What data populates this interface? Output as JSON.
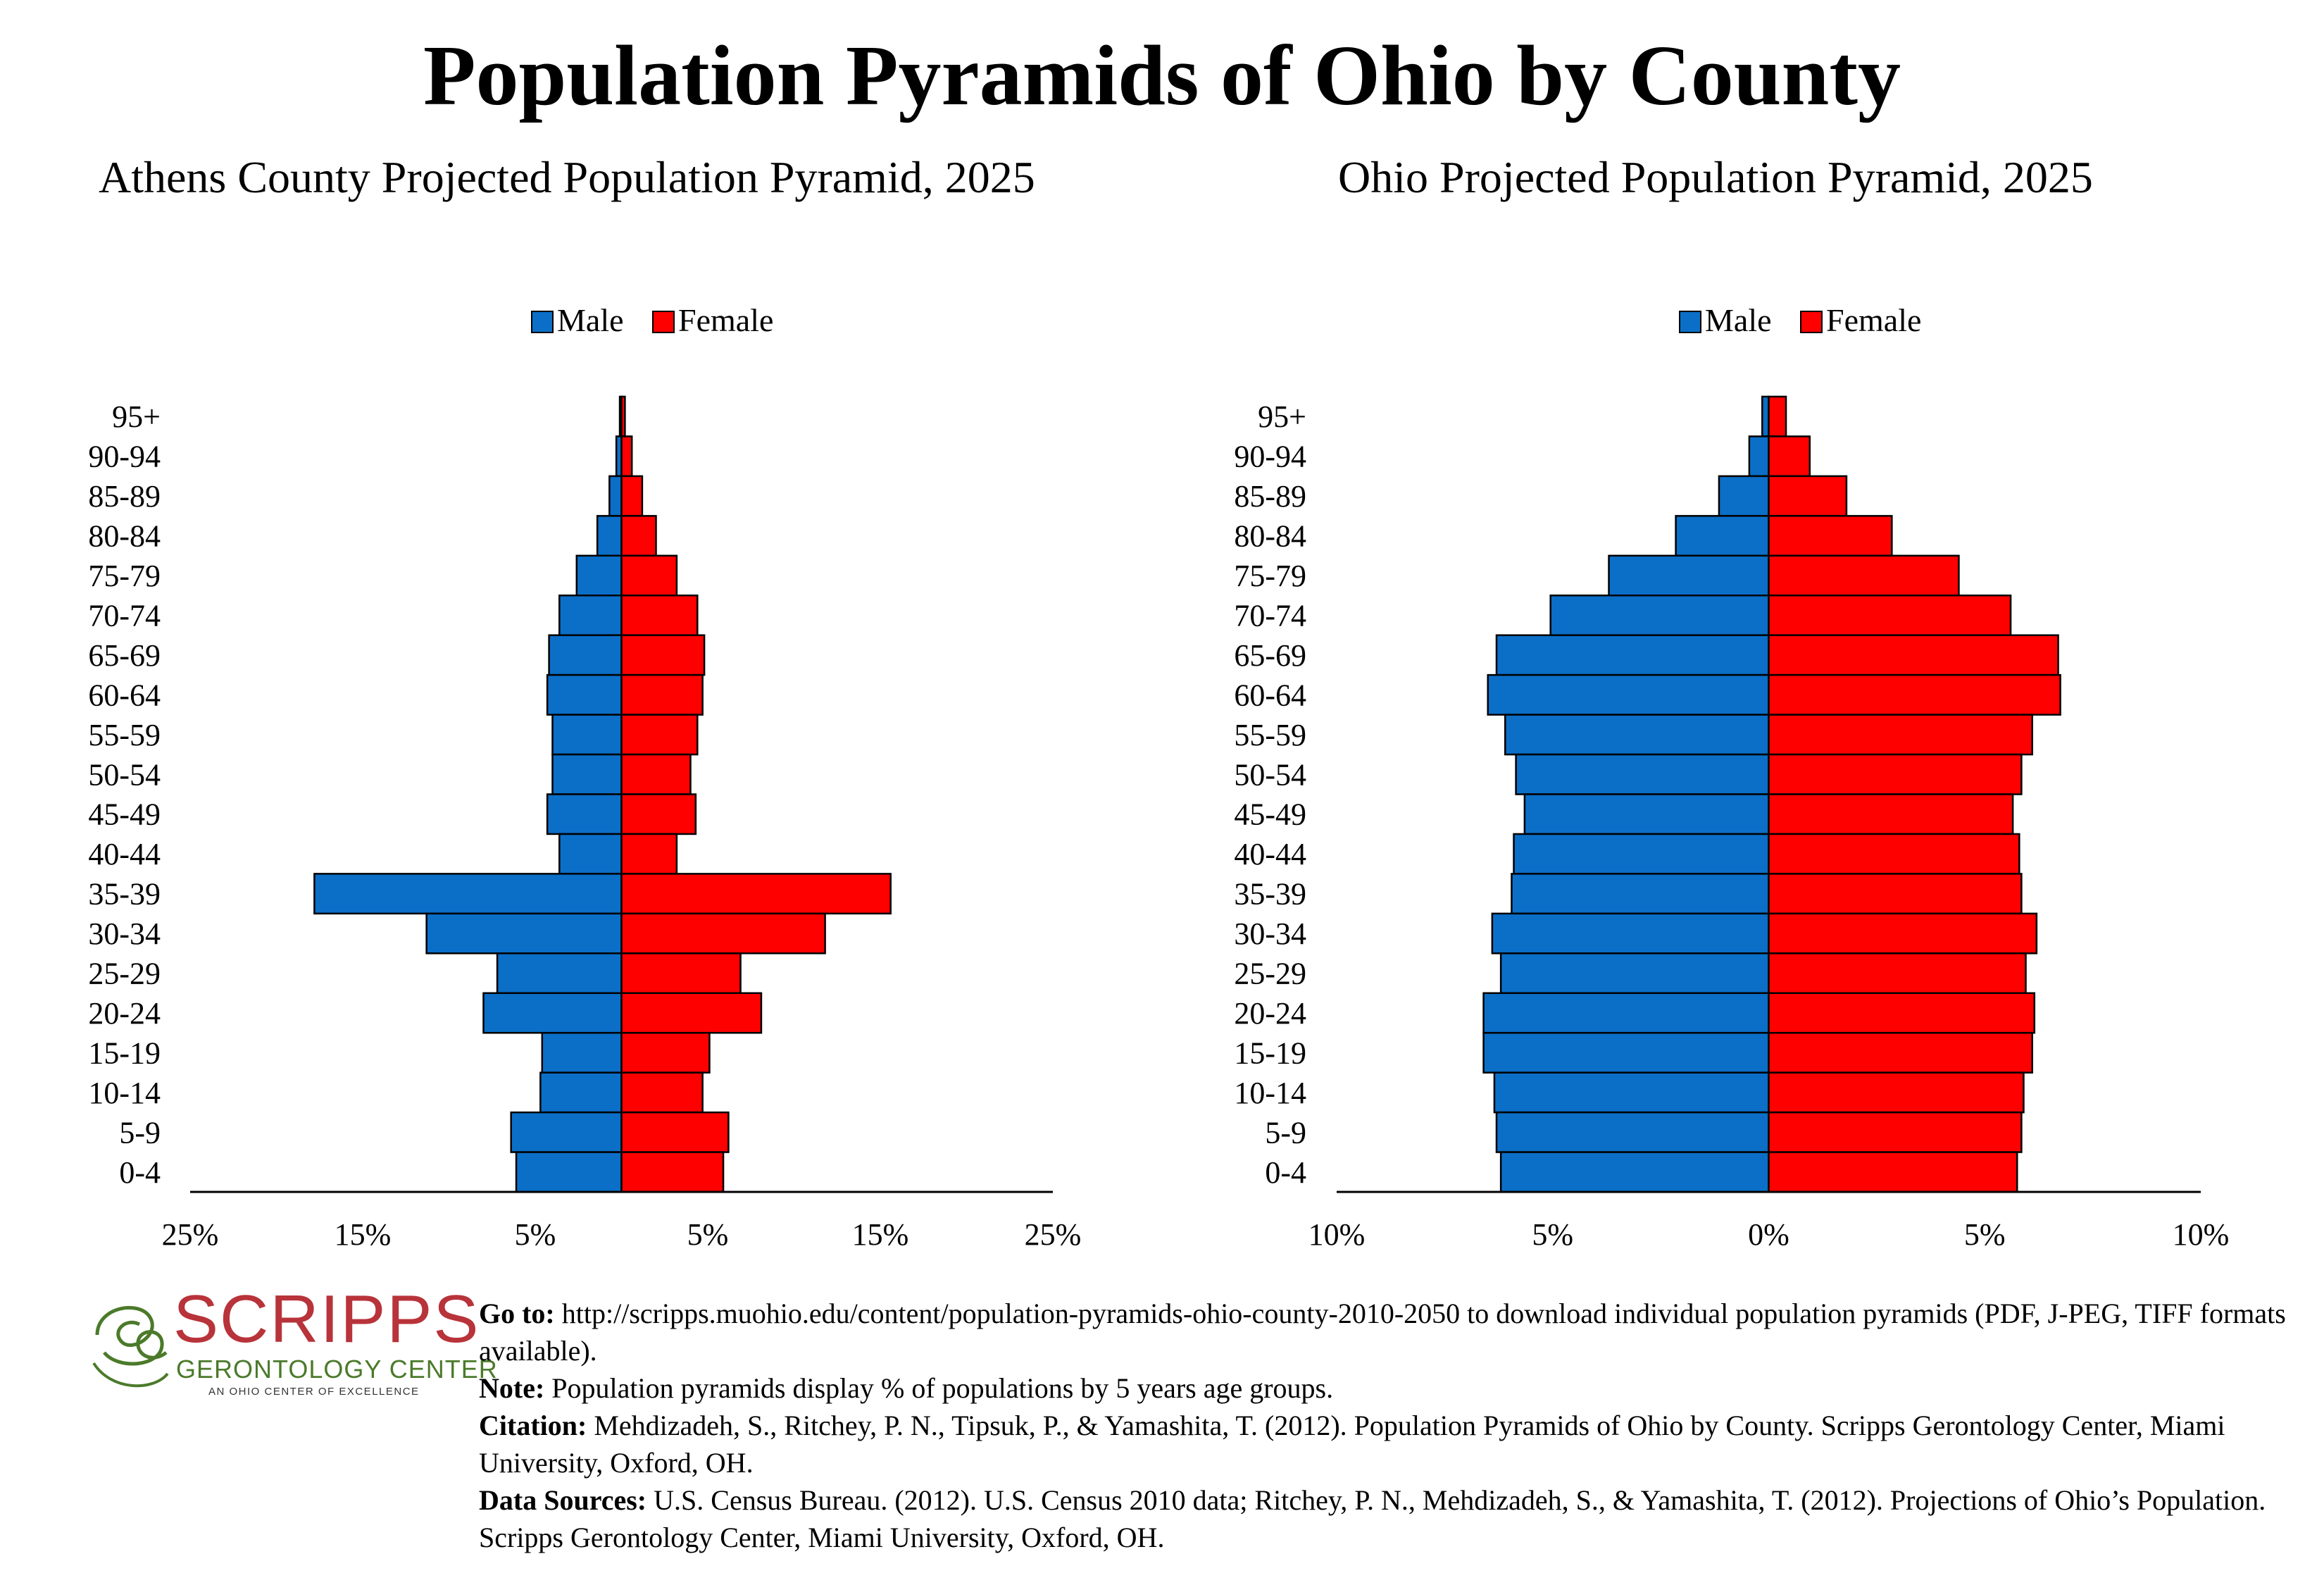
{
  "title": "Population Pyramids of Ohio by County",
  "colors": {
    "male": "#0b6fc7",
    "female": "#ff0000",
    "bar_stroke": "#000000"
  },
  "chart_data": [
    {
      "type": "bar",
      "orientation": "population-pyramid",
      "title": "Athens County Projected Population Pyramid, 2025",
      "legend": {
        "position": "top-center",
        "items": [
          "Male",
          "Female"
        ]
      },
      "categories": [
        "95+",
        "90-94",
        "85-89",
        "80-84",
        "75-79",
        "70-74",
        "65-69",
        "60-64",
        "55-59",
        "50-54",
        "45-49",
        "40-44",
        "35-39",
        "30-34",
        "25-29",
        "20-24",
        "15-19",
        "10-14",
        "5-9",
        "0-4"
      ],
      "series": [
        {
          "name": "Male",
          "values": [
            0.1,
            0.3,
            0.7,
            1.4,
            2.6,
            3.6,
            4.2,
            4.3,
            4.0,
            4.0,
            4.3,
            3.6,
            17.8,
            11.3,
            7.2,
            8.0,
            4.6,
            4.7,
            6.4,
            6.1
          ]
        },
        {
          "name": "Female",
          "values": [
            0.2,
            0.6,
            1.2,
            2.0,
            3.2,
            4.4,
            4.8,
            4.7,
            4.4,
            4.0,
            4.3,
            3.2,
            15.6,
            11.8,
            6.9,
            8.1,
            5.1,
            4.7,
            6.2,
            5.9
          ]
        }
      ],
      "x_ticks": [
        "25%",
        "15%",
        "5%",
        "5%",
        "15%",
        "25%"
      ],
      "xlim": [
        -25,
        25
      ],
      "grid": false
    },
    {
      "type": "bar",
      "orientation": "population-pyramid",
      "title": "Ohio Projected Population Pyramid, 2025",
      "legend": {
        "position": "top-center",
        "items": [
          "Male",
          "Female"
        ]
      },
      "categories": [
        "95+",
        "90-94",
        "85-89",
        "80-84",
        "75-79",
        "70-74",
        "65-69",
        "60-64",
        "55-59",
        "50-54",
        "45-49",
        "40-44",
        "35-39",
        "30-34",
        "25-29",
        "20-24",
        "15-19",
        "10-14",
        "5-9",
        "0-4"
      ],
      "series": [
        {
          "name": "Male",
          "values": [
            0.15,
            0.45,
            1.15,
            2.15,
            3.7,
            5.05,
            6.3,
            6.5,
            6.1,
            5.85,
            5.65,
            5.9,
            5.95,
            6.4,
            6.2,
            6.6,
            6.6,
            6.35,
            6.3,
            6.2
          ]
        },
        {
          "name": "Female",
          "values": [
            0.4,
            0.95,
            1.8,
            2.85,
            4.4,
            5.6,
            6.7,
            6.75,
            6.1,
            5.85,
            5.65,
            5.8,
            5.85,
            6.2,
            5.95,
            6.15,
            6.1,
            5.9,
            5.85,
            5.75
          ]
        }
      ],
      "x_ticks": [
        "10%",
        "5%",
        "0%",
        "5%",
        "10%"
      ],
      "xlim": [
        -10,
        10
      ],
      "grid": false
    }
  ],
  "logo": {
    "name": "SCRIPPS",
    "subtitle": "GERONTOLOGY CENTER",
    "tagline": "AN OHIO CENTER OF EXCELLENCE"
  },
  "notes": {
    "goto_label": "Go to:",
    "goto_text": " http://scripps.muohio.edu/content/population-pyramids-ohio-county-2010-2050 to download individual population pyramids (PDF, J-PEG, TIFF formats available).",
    "note_label": "Note:",
    "note_text": " Population pyramids display % of populations by 5 years age groups.",
    "citation_label": "Citation:",
    "citation_text": " Mehdizadeh, S., Ritchey, P. N., Tipsuk, P., & Yamashita, T. (2012). Population Pyramids of Ohio by County. Scripps Gerontology Center, Miami University, Oxford, OH.",
    "sources_label": "Data Sources:",
    "sources_text": " U.S. Census Bureau. (2012). U.S. Census 2010 data; Ritchey, P. N., Mehdizadeh, S., & Yamashita, T. (2012). Projections of Ohio’s Population. Scripps Gerontology Center, Miami University, Oxford, OH."
  }
}
